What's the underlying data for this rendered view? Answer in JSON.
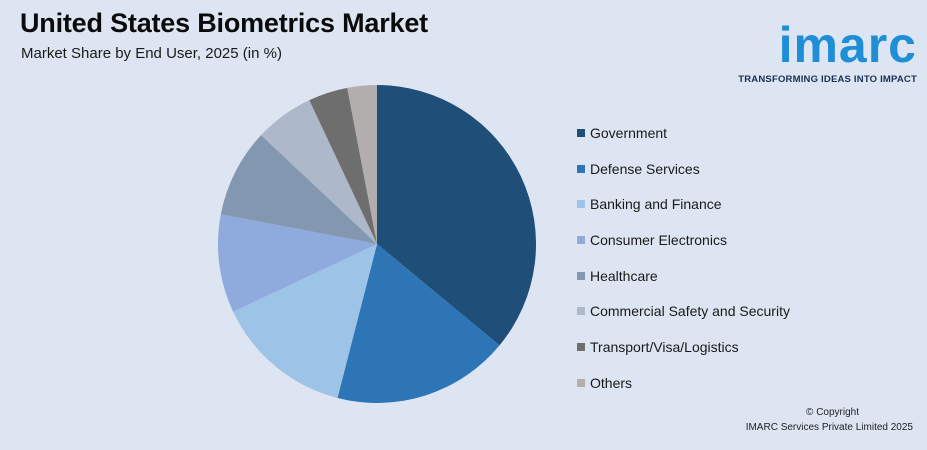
{
  "header": {
    "title": "United States Biometrics Market",
    "subtitle": "Market Share by End User, 2025 (in %)"
  },
  "logo": {
    "word": "imarc",
    "tagline": "TRANSFORMING IDEAS INTO IMPACT",
    "color": "#1e8fd6"
  },
  "footer": {
    "copyright": "© Copyright",
    "company": "IMARC Services Private Limited 2025"
  },
  "chart_data": {
    "type": "pie",
    "title": "United States Biometrics Market",
    "subtitle": "Market Share by End User, 2025 (in %)",
    "legend_position": "right",
    "start_angle": "12 o'clock, clockwise",
    "categories": [
      "Government",
      "Defense Services",
      "Banking and Finance",
      "Consumer Electronics",
      "Healthcare",
      "Commercial Safety and Security",
      "Transport/Visa/Logistics",
      "Others"
    ],
    "values": [
      36,
      18,
      14,
      10,
      9,
      6,
      4,
      3
    ],
    "colors": [
      "#1f4e79",
      "#2e75b6",
      "#9dc3e6",
      "#8faadc",
      "#8497b0",
      "#adb9ca",
      "#6e6e6e",
      "#b2aeae"
    ]
  }
}
